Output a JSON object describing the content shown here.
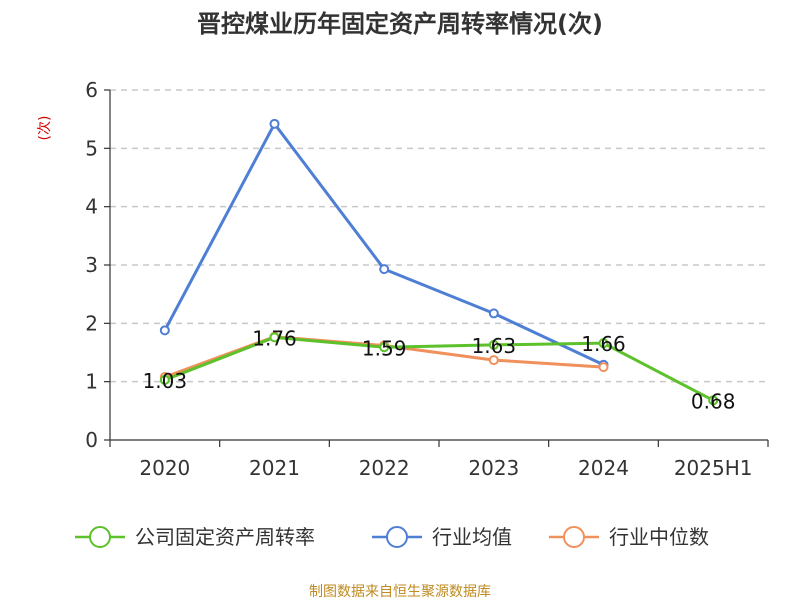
{
  "chart_data": {
    "type": "line",
    "title": "晋控煤业历年固定资产周转率情况(次)",
    "ylabel": "(次)",
    "xlabel": "",
    "categories": [
      "2020",
      "2021",
      "2022",
      "2023",
      "2024",
      "2025H1"
    ],
    "ylim": [
      0,
      6
    ],
    "yticks": [
      0,
      1,
      2,
      3,
      4,
      5,
      6
    ],
    "grid": true,
    "legend_position": "bottom",
    "series": [
      {
        "name": "公司固定资产周转率",
        "color": "#5cc12b",
        "values": [
          1.03,
          1.76,
          1.59,
          1.63,
          1.66,
          0.68
        ],
        "labeled": true
      },
      {
        "name": "行业均值",
        "color": "#4f7fd4",
        "values": [
          1.88,
          5.42,
          2.93,
          2.17,
          1.29,
          null
        ],
        "labeled": false
      },
      {
        "name": "行业中位数",
        "color": "#f0905a",
        "values": [
          1.08,
          1.77,
          1.62,
          1.37,
          1.25,
          null
        ],
        "labeled": false
      }
    ],
    "data_labels": [
      "1.03",
      "1.76",
      "1.59",
      "1.63",
      "1.66",
      "0.68"
    ],
    "source": "制图数据来自恒生聚源数据库"
  }
}
